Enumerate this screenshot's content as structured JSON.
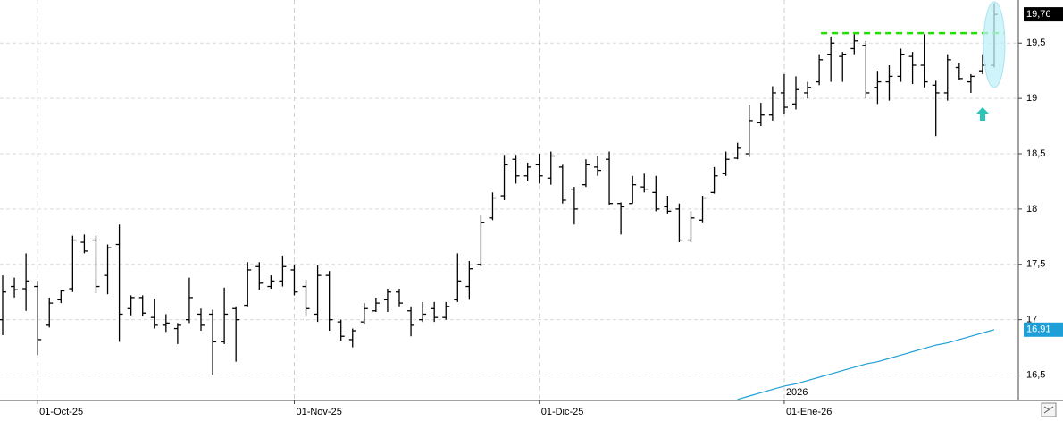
{
  "chart_data": {
    "type": "ohlc",
    "categories": [
      null,
      null,
      null,
      "01-Oct-25",
      null,
      null,
      null,
      null,
      null,
      null,
      null,
      null,
      null,
      null,
      null,
      null,
      null,
      null,
      null,
      null,
      null,
      null,
      null,
      null,
      null,
      "01-Nov-25",
      null,
      null,
      null,
      null,
      null,
      null,
      null,
      null,
      null,
      null,
      null,
      null,
      null,
      null,
      null,
      null,
      null,
      null,
      null,
      null,
      "01-Dic-25",
      null,
      null,
      null,
      null,
      null,
      null,
      null,
      null,
      null,
      null,
      null,
      null,
      null,
      null,
      null,
      null,
      null,
      null,
      null,
      null,
      "01-Ene-26",
      null,
      null,
      null,
      null,
      null,
      null,
      null,
      null,
      null,
      null,
      null,
      null,
      null,
      null,
      null,
      null,
      null,
      null
    ],
    "year_label": "2026",
    "open": [
      17.0,
      17.3,
      17.28,
      17.3,
      16.95,
      17.18,
      17.28,
      17.7,
      17.72,
      17.4,
      17.68,
      17.1,
      17.2,
      17.02,
      16.95,
      16.92,
      17.0,
      17.05,
      17.05,
      16.8,
      17.1,
      17.13,
      17.48,
      17.3,
      17.35,
      17.45,
      17.3,
      17.05,
      17.4,
      16.98,
      16.82,
      16.98,
      17.08,
      17.18,
      17.25,
      17.08,
      17.0,
      17.1,
      17.02,
      17.18,
      17.3,
      17.5,
      17.92,
      18.12,
      18.45,
      18.3,
      18.4,
      18.28,
      18.38,
      18.18,
      18.22,
      18.38,
      18.45,
      18.05,
      18.05,
      18.2,
      18.15,
      18.02,
      18.0,
      17.72,
      17.9,
      18.15,
      18.32,
      18.46,
      18.5,
      18.78,
      18.85,
      19.05,
      18.95,
      19.05,
      19.15,
      19.4,
      19.38,
      19.45,
      19.48,
      19.1,
      19.15,
      19.2,
      19.38,
      19.3,
      19.12,
      19.05,
      19.28,
      19.15,
      19.25,
      19.3
    ],
    "high": [
      17.4,
      17.38,
      17.6,
      17.35,
      17.2,
      17.27,
      17.76,
      17.77,
      17.76,
      17.68,
      17.86,
      17.22,
      17.22,
      17.19,
      17.05,
      16.97,
      17.38,
      17.1,
      17.09,
      17.29,
      17.12,
      17.52,
      17.52,
      17.4,
      17.58,
      17.5,
      17.36,
      17.49,
      17.44,
      17.0,
      16.92,
      17.15,
      17.2,
      17.28,
      17.28,
      17.12,
      17.16,
      17.16,
      17.16,
      17.6,
      17.53,
      17.95,
      18.15,
      18.49,
      18.49,
      18.42,
      18.5,
      18.52,
      18.4,
      18.2,
      18.45,
      18.48,
      18.52,
      18.06,
      18.3,
      18.32,
      18.3,
      18.12,
      18.05,
      17.98,
      18.12,
      18.38,
      18.52,
      18.6,
      18.94,
      18.96,
      19.11,
      19.22,
      19.2,
      19.15,
      19.4,
      19.56,
      19.42,
      19.58,
      19.52,
      19.25,
      19.3,
      19.45,
      19.42,
      19.58,
      19.16,
      19.4,
      19.32,
      19.22,
      19.4,
      19.86
    ],
    "low": [
      16.86,
      17.2,
      17.08,
      16.68,
      16.93,
      17.15,
      17.25,
      17.6,
      17.24,
      17.23,
      16.8,
      17.04,
      17.03,
      16.92,
      16.89,
      16.78,
      16.97,
      16.9,
      16.5,
      16.78,
      16.62,
      17.12,
      17.27,
      17.28,
      17.3,
      17.22,
      17.04,
      16.98,
      16.9,
      16.81,
      16.75,
      16.96,
      17.07,
      17.07,
      17.12,
      16.85,
      16.98,
      16.98,
      17.0,
      17.16,
      17.18,
      17.48,
      17.9,
      18.08,
      18.23,
      18.25,
      18.23,
      18.22,
      18.05,
      17.86,
      18.2,
      18.3,
      18.04,
      17.77,
      18.05,
      18.15,
      17.98,
      17.96,
      17.7,
      17.7,
      17.88,
      18.14,
      18.3,
      18.45,
      18.47,
      18.75,
      18.8,
      18.86,
      18.9,
      19.0,
      19.12,
      19.15,
      19.15,
      19.4,
      19.0,
      18.95,
      18.98,
      19.15,
      19.13,
      19.1,
      18.66,
      18.98,
      19.17,
      19.05,
      19.22,
      19.28
    ],
    "close": [
      17.25,
      17.27,
      17.35,
      16.82,
      17.15,
      17.26,
      17.72,
      17.62,
      17.3,
      17.65,
      17.05,
      17.2,
      17.06,
      16.95,
      16.97,
      16.95,
      17.2,
      16.95,
      16.8,
      17.05,
      17.0,
      17.45,
      17.33,
      17.35,
      17.48,
      17.25,
      17.1,
      17.4,
      17.0,
      16.85,
      16.9,
      17.1,
      17.15,
      17.25,
      17.15,
      16.95,
      17.05,
      17.02,
      17.12,
      17.35,
      17.46,
      17.88,
      18.1,
      18.4,
      18.3,
      18.38,
      18.3,
      18.48,
      18.08,
      18.0,
      18.4,
      18.35,
      18.05,
      18.02,
      18.22,
      18.18,
      18.0,
      17.98,
      17.72,
      17.92,
      18.1,
      18.3,
      18.45,
      18.55,
      18.8,
      18.85,
      19.05,
      18.92,
      19.08,
      19.1,
      19.35,
      19.5,
      19.4,
      19.52,
      19.05,
      19.15,
      19.2,
      19.4,
      19.3,
      19.15,
      19.05,
      19.35,
      19.18,
      19.2,
      19.3,
      19.76
    ],
    "close_label": "19,76",
    "color": "#000000",
    "ma": {
      "color": "#1e9fd8",
      "last_label": "16,91",
      "values": [
        null,
        null,
        null,
        null,
        null,
        null,
        null,
        null,
        null,
        null,
        null,
        null,
        null,
        null,
        null,
        null,
        null,
        null,
        null,
        null,
        null,
        null,
        null,
        null,
        null,
        null,
        null,
        null,
        null,
        null,
        null,
        null,
        null,
        null,
        null,
        null,
        null,
        null,
        null,
        null,
        null,
        null,
        null,
        null,
        null,
        null,
        null,
        null,
        null,
        null,
        null,
        null,
        null,
        null,
        null,
        null,
        null,
        null,
        null,
        null,
        null,
        null,
        null,
        16.28,
        16.31,
        16.34,
        16.37,
        16.4,
        16.42,
        16.45,
        16.48,
        16.51,
        16.54,
        16.57,
        16.6,
        16.62,
        16.65,
        16.68,
        16.71,
        16.74,
        16.77,
        16.79,
        16.82,
        16.85,
        16.88,
        16.91
      ]
    },
    "resistance": {
      "value": 19.59,
      "color": "#22dd00"
    },
    "ylim": [
      16.27,
      19.89
    ],
    "yticks": [
      {
        "value": 16.5,
        "label": "16,5"
      },
      17,
      {
        "value": 17.5,
        "label": "17,5"
      },
      18,
      {
        "value": 18.5,
        "label": "18,5"
      },
      19,
      {
        "value": 19.5,
        "label": "19,5"
      }
    ],
    "grid": true
  }
}
